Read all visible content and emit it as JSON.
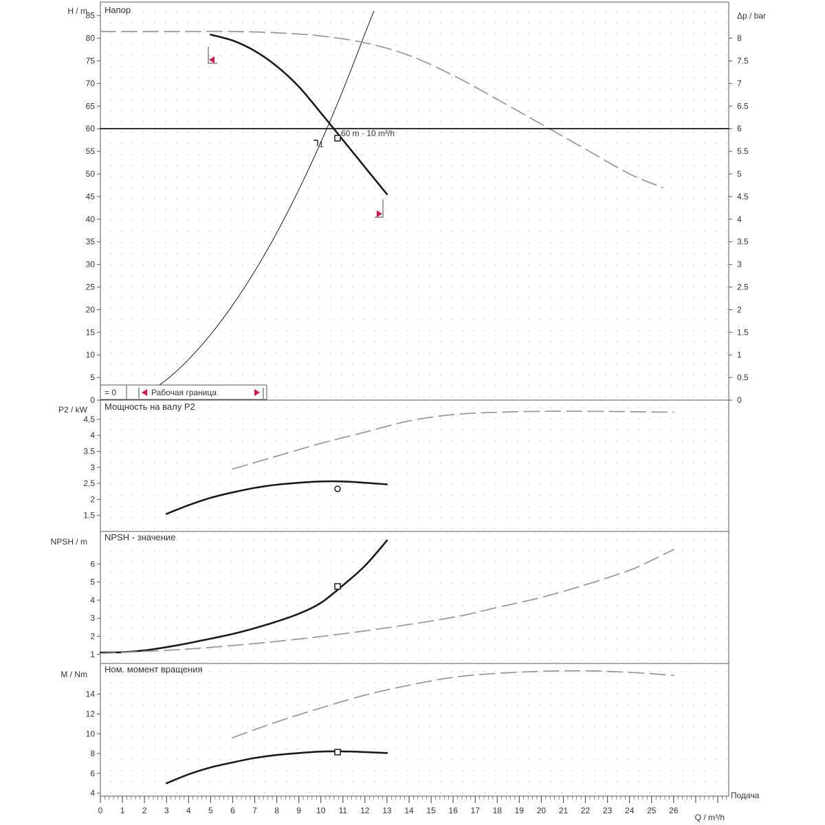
{
  "figure": {
    "x_axis_label": "Q / m³/h",
    "x_axis_caption": "Подача",
    "x_ticks": [
      0,
      1,
      2,
      3,
      4,
      5,
      6,
      7,
      8,
      9,
      10,
      11,
      12,
      13,
      14,
      15,
      16,
      17,
      18,
      19,
      20,
      21,
      22,
      23,
      24,
      25,
      26
    ]
  },
  "chart_data": [
    {
      "type": "line",
      "name": "head",
      "title": "Напор",
      "ylabel": "H / m",
      "ylabel_right": "Δp / bar",
      "xlim": [
        0,
        28.5
      ],
      "ylim": [
        0,
        88
      ],
      "y_ticks": [
        0,
        5,
        10,
        15,
        20,
        25,
        30,
        35,
        40,
        45,
        50,
        55,
        60,
        65,
        70,
        75,
        80,
        85
      ],
      "y2_ticks": [
        "0",
        "0.5",
        "1",
        "1.5",
        "2",
        "2.5",
        "3",
        "3.5",
        "4",
        "4.5",
        "5",
        "5.5",
        "6",
        "6.5",
        "7",
        "7.5",
        "8"
      ],
      "series": [
        {
          "role": "pump-curve",
          "color": "#1a1a1a",
          "x": [
            5,
            6,
            7,
            8,
            9,
            10,
            11,
            12,
            13
          ],
          "y": [
            80.8,
            79.5,
            77.2,
            73.8,
            69.3,
            63.5,
            57.5,
            51.5,
            45.5
          ]
        },
        {
          "role": "system-curve",
          "color": "#1a1a1a",
          "x": [
            2,
            3,
            4,
            5,
            6,
            7,
            8,
            9,
            10,
            11,
            12,
            12.4
          ],
          "y": [
            1.2,
            4.5,
            9.0,
            14.5,
            21.0,
            28.5,
            37.0,
            46.5,
            57.0,
            68.5,
            81.0,
            86.0
          ]
        },
        {
          "role": "reference-dashed",
          "color": "#9a9a9a",
          "x": [
            0,
            2,
            4,
            6,
            8,
            10,
            12,
            14,
            16,
            18,
            20,
            22,
            24,
            25.5
          ],
          "y": [
            81.5,
            81.5,
            81.5,
            81.5,
            81.2,
            80.5,
            79.0,
            76.2,
            71.8,
            66.5,
            61.0,
            55.5,
            50.0,
            47.0
          ]
        },
        {
          "role": "duty-line",
          "color": "#000000",
          "x": [
            0,
            28.5
          ],
          "y": [
            60,
            60
          ]
        }
      ],
      "annotations": {
        "duty_point_label": "60 m · 10 m³/h",
        "intersection_label": "1",
        "legend_value": "= 0",
        "legend_text": "Рабочая граница"
      }
    },
    {
      "type": "line",
      "name": "power",
      "title": "Мощность на валу P2",
      "ylabel": "P2 / kW",
      "xlim": [
        0,
        28.5
      ],
      "ylim": [
        1.0,
        5.1
      ],
      "y_ticks": [
        "1.5",
        "2",
        "2.5",
        "3",
        "3.5",
        "4",
        "4.5"
      ],
      "y_tick_values": [
        1.5,
        2,
        2.5,
        3,
        3.5,
        4,
        4.5
      ],
      "series": [
        {
          "role": "pump-curve",
          "color": "#1a1a1a",
          "x": [
            3,
            4,
            5,
            6,
            7,
            8,
            9,
            10,
            11,
            12,
            13
          ],
          "y": [
            1.55,
            1.82,
            2.05,
            2.22,
            2.36,
            2.46,
            2.52,
            2.56,
            2.56,
            2.52,
            2.47
          ]
        },
        {
          "role": "reference-dashed",
          "color": "#9a9a9a",
          "x": [
            6,
            8,
            10,
            12,
            14,
            16,
            18,
            20,
            22,
            24,
            26
          ],
          "y": [
            2.95,
            3.35,
            3.75,
            4.1,
            4.45,
            4.65,
            4.72,
            4.75,
            4.75,
            4.74,
            4.72
          ]
        }
      ]
    },
    {
      "type": "line",
      "name": "npsh",
      "title": "NPSH - значение",
      "ylabel": "NPSH / m",
      "xlim": [
        0,
        28.5
      ],
      "ylim": [
        0.5,
        7.8
      ],
      "y_ticks": [
        "1",
        "2",
        "3",
        "4",
        "5",
        "6"
      ],
      "y_tick_values": [
        1,
        2,
        3,
        4,
        5,
        6
      ],
      "series": [
        {
          "role": "pump-curve",
          "color": "#1a1a1a",
          "x": [
            0,
            1,
            2,
            3,
            4,
            5,
            6,
            7,
            8,
            9,
            10,
            11,
            12,
            13
          ],
          "y": [
            1.1,
            1.12,
            1.22,
            1.4,
            1.62,
            1.87,
            2.13,
            2.45,
            2.82,
            3.25,
            3.85,
            4.82,
            5.9,
            7.3
          ]
        },
        {
          "role": "reference-dashed",
          "color": "#9a9a9a",
          "x": [
            0,
            4,
            8,
            12,
            16,
            18,
            20,
            22,
            24,
            25,
            26
          ],
          "y": [
            1.05,
            1.3,
            1.72,
            2.3,
            3.05,
            3.6,
            4.15,
            4.85,
            5.65,
            6.2,
            6.8
          ]
        }
      ]
    },
    {
      "type": "line",
      "name": "torque",
      "title": "Ном. момент вращения",
      "ylabel": "M / Nm",
      "xlim": [
        0,
        28.5
      ],
      "ylim": [
        3.7,
        17.1
      ],
      "y_ticks": [
        "4",
        "6",
        "8",
        "10",
        "12",
        "14"
      ],
      "y_tick_values": [
        4,
        6,
        8,
        10,
        12,
        14
      ],
      "series": [
        {
          "role": "pump-curve",
          "color": "#1a1a1a",
          "x": [
            3,
            4,
            5,
            6,
            7,
            8,
            9,
            10,
            11,
            12,
            13
          ],
          "y": [
            5.0,
            5.9,
            6.6,
            7.1,
            7.55,
            7.85,
            8.05,
            8.2,
            8.22,
            8.15,
            8.05
          ]
        },
        {
          "role": "reference-dashed",
          "color": "#9a9a9a",
          "x": [
            6,
            8,
            10,
            12,
            14,
            16,
            18,
            20,
            22,
            24,
            26
          ],
          "y": [
            9.6,
            11.2,
            12.6,
            13.9,
            14.9,
            15.7,
            16.1,
            16.3,
            16.35,
            16.2,
            15.9
          ]
        }
      ]
    }
  ]
}
